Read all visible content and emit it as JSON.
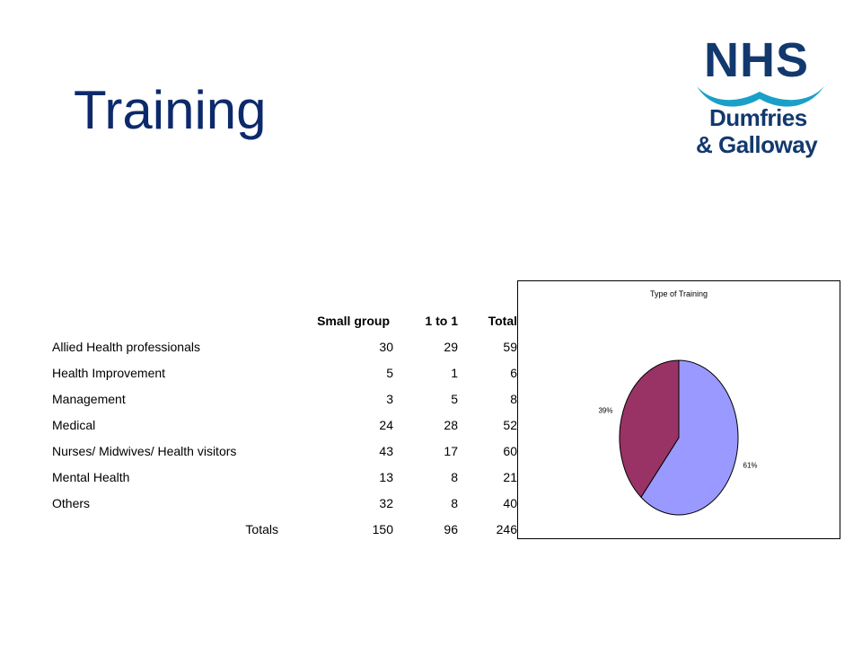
{
  "slide": {
    "title": "Training"
  },
  "logo": {
    "top": "NHS",
    "line1": "Dumfries",
    "line2": "& Galloway"
  },
  "table": {
    "headers": [
      "",
      "Small group",
      "1 to 1",
      "Total"
    ],
    "rows": [
      [
        "Allied Health professionals",
        "30",
        "29",
        "59"
      ],
      [
        "Health Improvement",
        "5",
        "1",
        "6"
      ],
      [
        "Management",
        "3",
        "5",
        "8"
      ],
      [
        "Medical",
        "24",
        "28",
        "52"
      ],
      [
        "Nurses/ Midwives/ Health visitors",
        "43",
        "17",
        "60"
      ],
      [
        "Mental Health",
        "13",
        "8",
        "21"
      ],
      [
        "Others",
        "32",
        "8",
        "40"
      ]
    ],
    "totals": [
      "Totals",
      "150",
      "96",
      "246"
    ]
  },
  "chart_data": {
    "type": "pie",
    "title": "Type of Training",
    "slices": [
      {
        "label": "61%",
        "value": 61,
        "color": "#9999ff"
      },
      {
        "label": "39%",
        "value": 39,
        "color": "#993366"
      }
    ]
  }
}
